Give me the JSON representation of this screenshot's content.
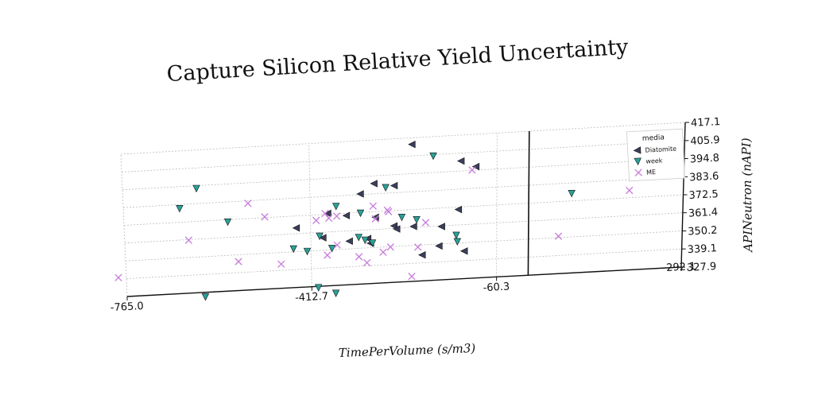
{
  "chart_data": {
    "type": "scatter",
    "title": "Capture Silicon Relative Yield Uncertainty",
    "xlabel": "TimePerVolume (s/m3)",
    "ylabel": "APINeutron (nAPI)",
    "xlim": [
      -765.0,
      292.1
    ],
    "ylim": [
      327.9,
      417.1
    ],
    "x_ticks": [
      "-765.0",
      "-412.7",
      "-60.3",
      "292.1"
    ],
    "y_ticks": [
      "327.9",
      "339.1",
      "350.2",
      "361.4",
      "372.5",
      "383.6",
      "394.8",
      "405.9",
      "417.1"
    ],
    "grid": true,
    "legend_title": "media",
    "legend_position": "top-right",
    "series": [
      {
        "name": "Diatomite",
        "marker": "triangle-left",
        "color": "#3b3f5c",
        "points": [
          [
            -220,
            413
          ],
          [
            -128,
            401
          ],
          [
            -100,
            397
          ],
          [
            -292,
            390
          ],
          [
            -254,
            388
          ],
          [
            -318,
            384
          ],
          [
            -133,
            371
          ],
          [
            -380,
            373
          ],
          [
            -345,
            371
          ],
          [
            -290,
            369
          ],
          [
            -255,
            363
          ],
          [
            -250,
            361
          ],
          [
            -440,
            365
          ],
          [
            -218,
            362
          ],
          [
            -165,
            361
          ],
          [
            -390,
            358
          ],
          [
            -340,
            355
          ],
          [
            -305,
            356
          ],
          [
            -300,
            353
          ],
          [
            -170,
            349
          ],
          [
            -202,
            344
          ],
          [
            -122,
            345
          ]
        ]
      },
      {
        "name": "week",
        "marker": "triangle-down",
        "color": "#2aa198",
        "points": [
          [
            -626,
            393
          ],
          [
            -659,
            381
          ],
          [
            -569,
            371
          ],
          [
            -270,
            387
          ],
          [
            -180,
            405
          ],
          [
            -364,
            377
          ],
          [
            -318,
            372
          ],
          [
            -240,
            368
          ],
          [
            -212,
            366
          ],
          [
            -396,
            359
          ],
          [
            -322,
            357
          ],
          [
            -296,
            353
          ],
          [
            -310,
            355
          ],
          [
            -446,
            352
          ],
          [
            -420,
            350
          ],
          [
            -373,
            351
          ],
          [
            -137,
            355
          ],
          [
            81,
            377
          ],
          [
            -135,
            351
          ],
          [
            -616,
            325
          ],
          [
            -400,
            327
          ],
          [
            -367,
            323
          ]
        ]
      },
      {
        "name": "ME",
        "marker": "x",
        "color": "#c77bdb",
        "points": [
          [
            -530,
            382
          ],
          [
            -499,
            373
          ],
          [
            -385,
            373
          ],
          [
            -378,
            370
          ],
          [
            -363,
            371
          ],
          [
            -402,
            369
          ],
          [
            -294,
            376
          ],
          [
            -267,
            373
          ],
          [
            -265,
            372
          ],
          [
            -290,
            368
          ],
          [
            -195,
            364
          ],
          [
            -644,
            361
          ],
          [
            -551,
            346
          ],
          [
            -470,
            343
          ],
          [
            -382,
            347
          ],
          [
            -363,
            353
          ],
          [
            -322,
            345
          ],
          [
            -262,
            350
          ],
          [
            -276,
            347
          ],
          [
            -307,
            341
          ],
          [
            -210,
            349
          ],
          [
            -107,
            395
          ],
          [
            57,
            351
          ],
          [
            190,
            377
          ],
          [
            -780,
            340
          ],
          [
            -222,
            331
          ]
        ]
      }
    ]
  }
}
